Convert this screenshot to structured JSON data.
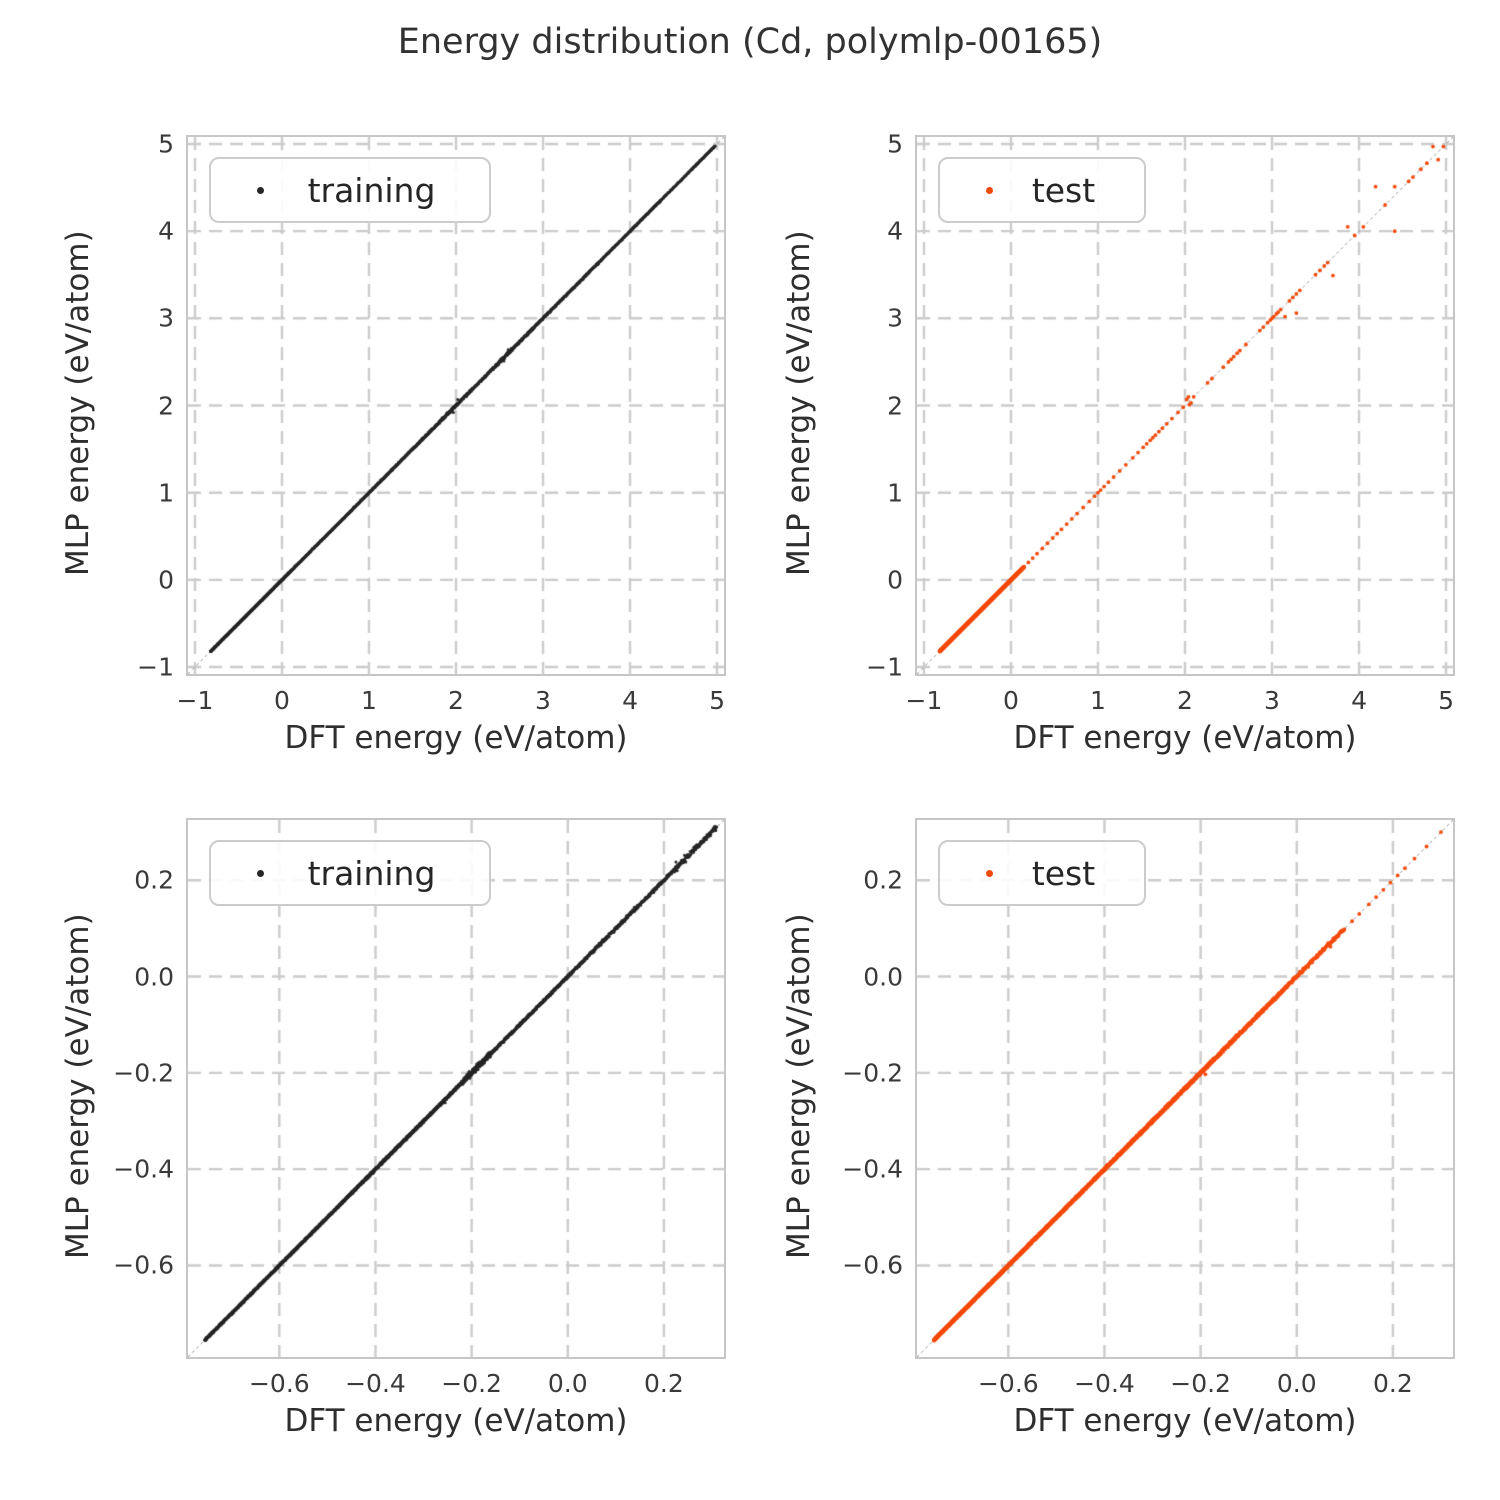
{
  "title": "Energy distribution (Cd, polymlp-00165)",
  "style": {
    "background": "#ffffff",
    "grid_color": "#cccccc",
    "frame_color": "#c6c6c6",
    "identity_line_color": "#999999",
    "text_color": "#2e2e2e",
    "tick_color": "#3a3a3a",
    "legend_border_color": "#cccccc",
    "training_color": "#262626",
    "test_color": "#f34b0c"
  },
  "segment_format": "[x_start, x_end, point_count, y_spread] points lie on y=x parity diagonal",
  "chart_data": [
    {
      "position": "top-left",
      "type": "scatter",
      "xlabel": "DFT energy (eV/atom)",
      "ylabel": "MLP energy (eV/atom)",
      "xlim": [
        -1.08,
        5.08
      ],
      "ylim": [
        -1.08,
        5.08
      ],
      "xtick_values": [
        -1,
        0,
        1,
        2,
        3,
        4,
        5
      ],
      "xtick_labels": [
        "−1",
        "0",
        "1",
        "2",
        "3",
        "4",
        "5"
      ],
      "ytick_values": [
        -1,
        0,
        1,
        2,
        3,
        4,
        5
      ],
      "ytick_labels": [
        "−1",
        "0",
        "1",
        "2",
        "3",
        "4",
        "5"
      ],
      "grid": true,
      "identity_line": true,
      "legend": {
        "label": "training",
        "position": "upper left"
      },
      "series": [
        {
          "name": "training",
          "color": "#262626",
          "marker_radius": 1.5,
          "diagonal_segments": [
            [
              -0.82,
              0.12,
              1500,
              0.003
            ],
            [
              0.12,
              0.95,
              300,
              0.004
            ],
            [
              0.95,
              1.5,
              210,
              0.005
            ],
            [
              1.5,
              1.8,
              160,
              0.006
            ],
            [
              1.8,
              2.15,
              150,
              0.01
            ],
            [
              2.15,
              2.45,
              90,
              0.008
            ],
            [
              2.45,
              2.65,
              110,
              0.012
            ],
            [
              2.65,
              3.1,
              170,
              0.008
            ],
            [
              3.1,
              3.55,
              150,
              0.006
            ],
            [
              3.55,
              4.0,
              120,
              0.005
            ],
            [
              4.0,
              4.35,
              110,
              0.005
            ],
            [
              4.35,
              4.7,
              60,
              0.004
            ],
            [
              4.7,
              4.98,
              70,
              0.004
            ]
          ],
          "points": [
            [
              2.02,
              2.07
            ],
            [
              2.55,
              2.51
            ],
            [
              1.97,
              1.92
            ],
            [
              2.6,
              2.64
            ]
          ]
        }
      ]
    },
    {
      "position": "top-right",
      "type": "scatter",
      "xlabel": "DFT energy (eV/atom)",
      "ylabel": "MLP energy (eV/atom)",
      "xlim": [
        -1.08,
        5.08
      ],
      "ylim": [
        -1.08,
        5.08
      ],
      "xtick_values": [
        -1,
        0,
        1,
        2,
        3,
        4,
        5
      ],
      "xtick_labels": [
        "−1",
        "0",
        "1",
        "2",
        "3",
        "4",
        "5"
      ],
      "ytick_values": [
        -1,
        0,
        1,
        2,
        3,
        4,
        5
      ],
      "ytick_labels": [
        "−1",
        "0",
        "1",
        "2",
        "3",
        "4",
        "5"
      ],
      "grid": true,
      "identity_line": true,
      "legend": {
        "label": "test",
        "position": "upper left"
      },
      "series": [
        {
          "name": "test",
          "color": "#f34b0c",
          "marker_radius": 1.9,
          "diagonal_segments": [
            [
              -0.82,
              0.15,
              1200,
              0.003
            ]
          ],
          "on_line_x": [
            0.2,
            0.25,
            0.3,
            0.36,
            0.42,
            0.48,
            0.53,
            0.58,
            0.64,
            0.7,
            0.76,
            0.83,
            0.9,
            0.96,
            1.0,
            1.03,
            1.07,
            1.12,
            1.18,
            1.25,
            1.32,
            1.4,
            1.46,
            1.52,
            1.56,
            1.6,
            1.63,
            1.66,
            1.7,
            1.74,
            1.79,
            1.85,
            1.92,
            1.98,
            2.1,
            2.26,
            2.31,
            2.44,
            2.5,
            2.53,
            2.56,
            2.6,
            2.63,
            2.7,
            2.86,
            2.9,
            2.95,
            2.98,
            3.0,
            3.02,
            3.05,
            3.07,
            3.1,
            3.2,
            3.24,
            3.28,
            3.32,
            3.5,
            3.55,
            3.6,
            3.64,
            3.95,
            4.05,
            4.3,
            4.57,
            4.62,
            4.71,
            4.78,
            4.97
          ],
          "points": [
            [
              2.02,
              2.07
            ],
            [
              2.04,
              2.1
            ],
            [
              2.05,
              2.01
            ],
            [
              2.07,
              2.03
            ],
            [
              3.15,
              3.02
            ],
            [
              3.28,
              3.06
            ],
            [
              3.7,
              3.49
            ],
            [
              3.87,
              4.05
            ],
            [
              4.19,
              4.51
            ],
            [
              4.41,
              4.51
            ],
            [
              4.41,
              4.0
            ],
            [
              4.91,
              4.82
            ],
            [
              4.85,
              4.97
            ]
          ]
        }
      ]
    },
    {
      "position": "bottom-left",
      "type": "scatter",
      "xlabel": "DFT energy (eV/atom)",
      "ylabel": "MLP energy (eV/atom)",
      "xlim": [
        -0.79,
        0.325
      ],
      "ylim": [
        -0.79,
        0.325
      ],
      "xtick_values": [
        -0.6,
        -0.4,
        -0.2,
        0.0,
        0.2
      ],
      "xtick_labels": [
        "−0.6",
        "−0.4",
        "−0.2",
        "0.0",
        "0.2"
      ],
      "ytick_values": [
        -0.6,
        -0.4,
        -0.2,
        0.0,
        0.2
      ],
      "ytick_labels": [
        "−0.6",
        "−0.4",
        "−0.2",
        "0.0",
        "0.2"
      ],
      "grid": true,
      "identity_line": true,
      "legend": {
        "label": "training",
        "position": "upper left"
      },
      "series": [
        {
          "name": "training",
          "color": "#262626",
          "marker_radius": 1.5,
          "diagonal_segments": [
            [
              -0.755,
              -0.45,
              1700,
              0.0012
            ],
            [
              -0.45,
              -0.22,
              950,
              0.0018
            ],
            [
              -0.22,
              -0.16,
              260,
              0.004
            ],
            [
              -0.16,
              0.05,
              520,
              0.0018
            ],
            [
              0.05,
              0.22,
              280,
              0.0025
            ],
            [
              0.22,
              0.31,
              130,
              0.004
            ]
          ],
          "points": [
            [
              0.225,
              0.238
            ],
            [
              0.243,
              0.252
            ],
            [
              -0.205,
              -0.197
            ],
            [
              -0.255,
              -0.262
            ]
          ]
        }
      ]
    },
    {
      "position": "bottom-right",
      "type": "scatter",
      "xlabel": "DFT energy (eV/atom)",
      "ylabel": "MLP energy (eV/atom)",
      "xlim": [
        -0.79,
        0.325
      ],
      "ylim": [
        -0.79,
        0.325
      ],
      "xtick_values": [
        -0.6,
        -0.4,
        -0.2,
        0.0,
        0.2
      ],
      "xtick_labels": [
        "−0.6",
        "−0.4",
        "−0.2",
        "0.0",
        "0.2"
      ],
      "ytick_values": [
        -0.6,
        -0.4,
        -0.2,
        0.0,
        0.2
      ],
      "ytick_labels": [
        "−0.6",
        "−0.4",
        "−0.2",
        "0.0",
        "0.2"
      ],
      "grid": true,
      "identity_line": true,
      "legend": {
        "label": "test",
        "position": "upper left"
      },
      "series": [
        {
          "name": "test",
          "color": "#f34b0c",
          "marker_radius": 1.9,
          "diagonal_segments": [
            [
              -0.755,
              -0.4,
              1500,
              0.0012
            ],
            [
              -0.4,
              -0.17,
              850,
              0.0016
            ],
            [
              -0.17,
              -0.02,
              300,
              0.0018
            ],
            [
              -0.02,
              0.1,
              100,
              0.002
            ]
          ],
          "on_line_x": [
            0.115,
            0.13,
            0.15,
            0.165,
            0.18,
            0.195,
            0.21,
            0.225,
            0.245,
            0.27,
            0.3
          ],
          "points": [
            [
              -0.19,
              -0.203
            ],
            [
              0.07,
              0.062
            ]
          ]
        }
      ]
    }
  ]
}
